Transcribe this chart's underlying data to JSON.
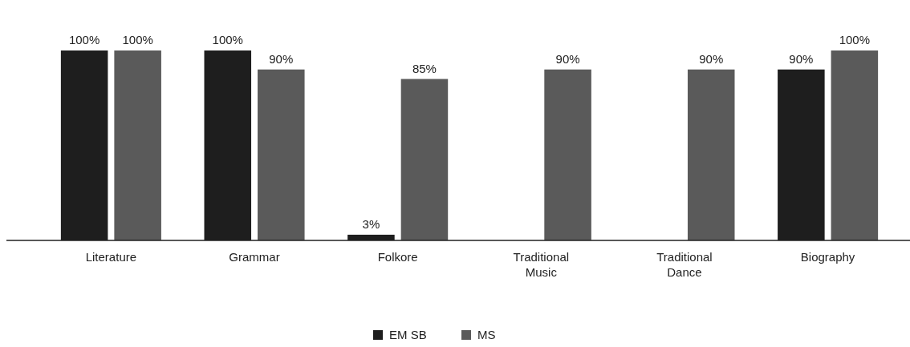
{
  "chart_data": {
    "type": "bar",
    "categories": [
      "Literature",
      "Grammar",
      "Folkore",
      "Traditional Music",
      "Traditional Dance",
      "Biography"
    ],
    "series": [
      {
        "name": "EM SB",
        "color": "#1e1e1e",
        "values": [
          100,
          100,
          3,
          null,
          null,
          90
        ],
        "value_labels": [
          "100%",
          "100%",
          "3%",
          null,
          null,
          "90%"
        ]
      },
      {
        "name": "MS",
        "color": "#5a5a5a",
        "values": [
          100,
          90,
          85,
          90,
          90,
          100
        ],
        "value_labels": [
          "100%",
          "90%",
          "85%",
          "90%",
          "90%",
          "100%"
        ]
      }
    ],
    "legend": "bottom"
  }
}
